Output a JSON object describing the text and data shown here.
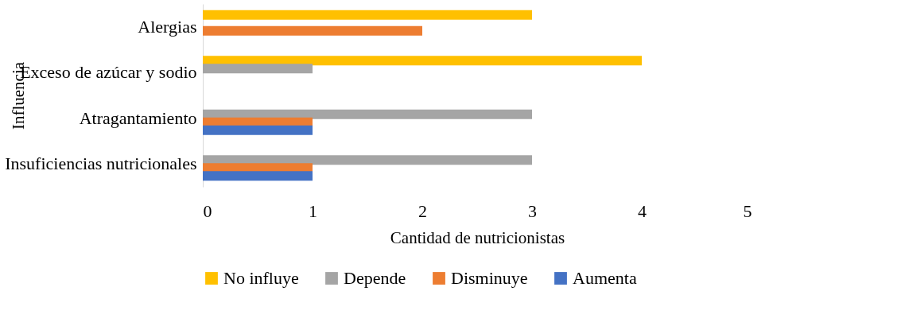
{
  "chart_data": {
    "type": "bar",
    "orientation": "horizontal",
    "xlabel": "Cantidad de nutricionistas",
    "ylabel": "Influencia",
    "categories": [
      "Alergias",
      "Exceso de azúcar y sodio",
      "Atragantamiento",
      "Insuficiencias nutricionales"
    ],
    "series": [
      {
        "name": "No influye",
        "color": "#ffc000",
        "values": [
          3,
          4,
          null,
          null
        ]
      },
      {
        "name": "Depende",
        "color": "#a5a5a5",
        "values": [
          null,
          1,
          3,
          3
        ]
      },
      {
        "name": "Disminuye",
        "color": "#ed7d31",
        "values": [
          2,
          null,
          1,
          1
        ]
      },
      {
        "name": "Aumenta",
        "color": "#4472c4",
        "values": [
          null,
          null,
          1,
          1
        ]
      }
    ],
    "xlim": [
      0,
      5
    ],
    "xticks": [
      0,
      1,
      2,
      3,
      4,
      5
    ],
    "grid": false,
    "legend": "bottom"
  }
}
